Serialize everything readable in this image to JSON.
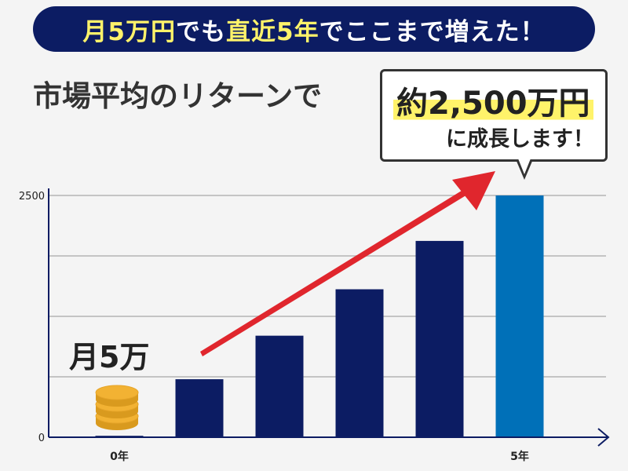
{
  "banner": {
    "part1": "月5万円",
    "part2": "でも",
    "part3": "直近5年",
    "part4": "でここまで増えた！"
  },
  "subtitle": "市場平均のリターンで",
  "callout": {
    "amount": "約2,500万円",
    "text": "に成長します！"
  },
  "coin_label": "月5万",
  "colors": {
    "banner_bg": "#0c1c63",
    "highlight": "#fff36a",
    "bar": "#0c1c63",
    "bar_final": "#0070b8",
    "arrow": "#e0262d",
    "coin": "#f2b233"
  },
  "chart_data": {
    "type": "bar",
    "categories": [
      "0年",
      "",
      "",
      "",
      "",
      "5年"
    ],
    "values": [
      15,
      600,
      1050,
      1530,
      2030,
      2500
    ],
    "ylim": [
      0,
      2500
    ],
    "yticks": [
      0,
      2500
    ],
    "grid": true,
    "trend_arrow": true
  }
}
